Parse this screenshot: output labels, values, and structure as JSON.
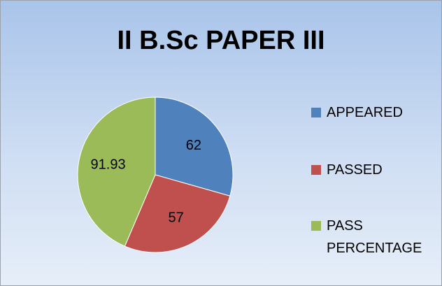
{
  "chart_data": {
    "type": "pie",
    "title": "II B.Sc PAPER III",
    "categories": [
      "APPEARED",
      "PASSED",
      "PASS PERCENTAGE"
    ],
    "values": [
      62,
      57,
      91.93
    ],
    "colors": [
      "#4f81bd",
      "#c0504d",
      "#9bbb59"
    ],
    "legend": "right"
  }
}
